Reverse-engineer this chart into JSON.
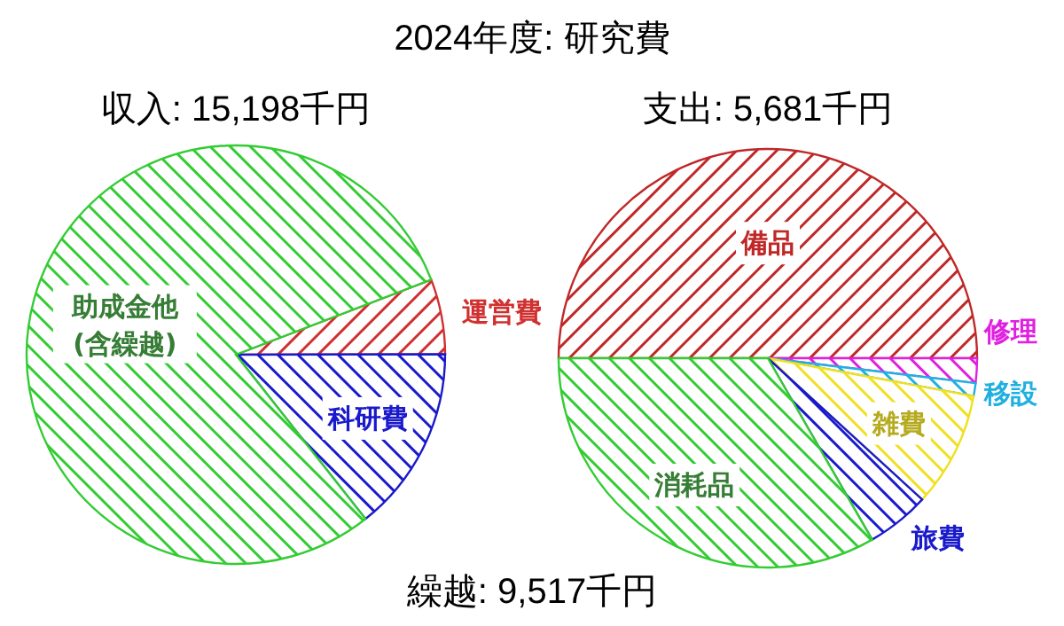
{
  "chart_data": [
    {
      "type": "pie",
      "title": "2024年度: 研究費",
      "subtitle": "収入: 15,198千円",
      "annotations": [
        "繰越: 9,517千円"
      ],
      "categories": [
        "運営費",
        "科研費",
        "助成金他(含繰越)"
      ],
      "values": [
        5.8,
        14.4,
        79.8
      ],
      "colors": [
        "#d03030",
        "#1a1acc",
        "#33cc33"
      ]
    },
    {
      "type": "pie",
      "title": "支出: 5,681千円",
      "categories": [
        "備品",
        "修理",
        "移設",
        "雑費",
        "旅費",
        "消耗品"
      ],
      "values": [
        50,
        1.9,
        1,
        8.9,
        4.9,
        33.3
      ],
      "colors": [
        "#c02828",
        "#e020e0",
        "#20b0e0",
        "#f0e020",
        "#1a1acc",
        "#33cc33"
      ]
    }
  ]
}
